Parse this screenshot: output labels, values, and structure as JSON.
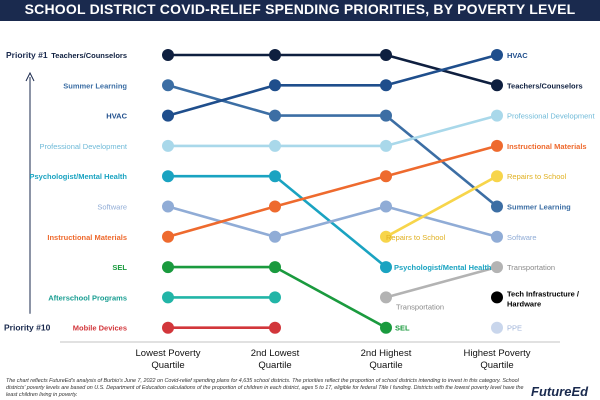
{
  "title": "SCHOOL DISTRICT COVID-RELIEF SPENDING PRIORITIES, BY POVERTY LEVEL",
  "footnote": "The chart reflects FutureEd's analysis of Burbio's June 7, 2022 on Covid-relief spending plans for 4,635 school districts. The priorities reflect the proportion of school districts intending to invest in this category. School districts' poverty levels are based on U.S. Department of Education calculations of the proportion of children in each district, ages 5 to 17, eligible for federal Title I funding. Districts with the lowest poverty level have the least children living in poverty.",
  "logo": "FutureEd",
  "chart_data": {
    "type": "line",
    "chart_kind": "slope / rank chart",
    "y_axis": {
      "top_label": "Priority #1",
      "bottom_label": "Priority #10",
      "ylim": [
        1,
        10
      ],
      "direction": "rank 1 at top",
      "arrow": "upward"
    },
    "categories": [
      "Lowest Poverty\nQuartile",
      "2nd Lowest\nQuartile",
      "2nd Highest\nQuartile",
      "Highest Poverty\nQuartile"
    ],
    "series": [
      {
        "name": "Teachers/Counselors",
        "color": "#0e1f3f",
        "values": [
          1,
          1,
          1,
          2
        ],
        "labels": [
          "Teachers/Counselors",
          "",
          "",
          "Teachers/Counselors"
        ]
      },
      {
        "name": "Summer Learning",
        "color": "#3c6ea4",
        "values": [
          2,
          3,
          3,
          6
        ],
        "labels": [
          "Summer Learning",
          "",
          "",
          "Summer Learning"
        ]
      },
      {
        "name": "HVAC",
        "color": "#1f4e8c",
        "values": [
          3,
          2,
          2,
          1
        ],
        "labels": [
          "HVAC",
          "",
          "",
          "HVAC"
        ]
      },
      {
        "name": "Professional Development",
        "color": "#a9d8ea",
        "values": [
          4,
          4,
          4,
          3
        ],
        "labels": [
          "Professional Development",
          "",
          "",
          "Professional Development"
        ]
      },
      {
        "name": "Psychologist/Mental Health",
        "color": "#1aa3c1",
        "values": [
          5,
          5,
          8,
          null
        ],
        "labels": [
          "Psychologist/Mental Health",
          "",
          "Psychologist/Mental Health",
          ""
        ]
      },
      {
        "name": "Software",
        "color": "#90acd6",
        "values": [
          6,
          7,
          6,
          7
        ],
        "labels": [
          "Software",
          "",
          "",
          "Software"
        ]
      },
      {
        "name": "Instructional Materials",
        "color": "#ee6a2e",
        "values": [
          7,
          6,
          5,
          4
        ],
        "labels": [
          "Instructional Materials",
          "",
          "",
          "Instructional Materials"
        ]
      },
      {
        "name": "SEL",
        "color": "#1a9a3e",
        "values": [
          8,
          8,
          10,
          null
        ],
        "labels": [
          "SEL",
          "",
          "SEL",
          ""
        ]
      },
      {
        "name": "Afterschool Programs",
        "color": "#22b5a7",
        "values": [
          9,
          9,
          null,
          null
        ],
        "labels": [
          "Afterschool Programs",
          "",
          "",
          ""
        ]
      },
      {
        "name": "Mobile Devices",
        "color": "#d2363b",
        "values": [
          10,
          10,
          null,
          null
        ],
        "labels": [
          "Mobile Devices",
          "",
          "",
          ""
        ]
      },
      {
        "name": "Repairs to School",
        "color": "#f7d54b",
        "values": [
          null,
          null,
          7,
          5
        ],
        "labels": [
          "",
          "",
          "Repairs to School",
          "Repairs to School"
        ]
      },
      {
        "name": "Transportation",
        "color": "#b3b3b3",
        "values": [
          null,
          null,
          9,
          8
        ],
        "labels": [
          "",
          "",
          "Transportation",
          "Transportation"
        ]
      },
      {
        "name": "Tech Infrastructure / Hardware",
        "color": "#000000",
        "values": [
          null,
          null,
          null,
          9
        ],
        "labels": [
          "",
          "",
          "",
          "Tech Infrastructure /\nHardware"
        ]
      },
      {
        "name": "PPE",
        "color": "#c9d6ec",
        "values": [
          null,
          null,
          null,
          10
        ],
        "labels": [
          "",
          "",
          "",
          "PPE"
        ]
      }
    ]
  }
}
